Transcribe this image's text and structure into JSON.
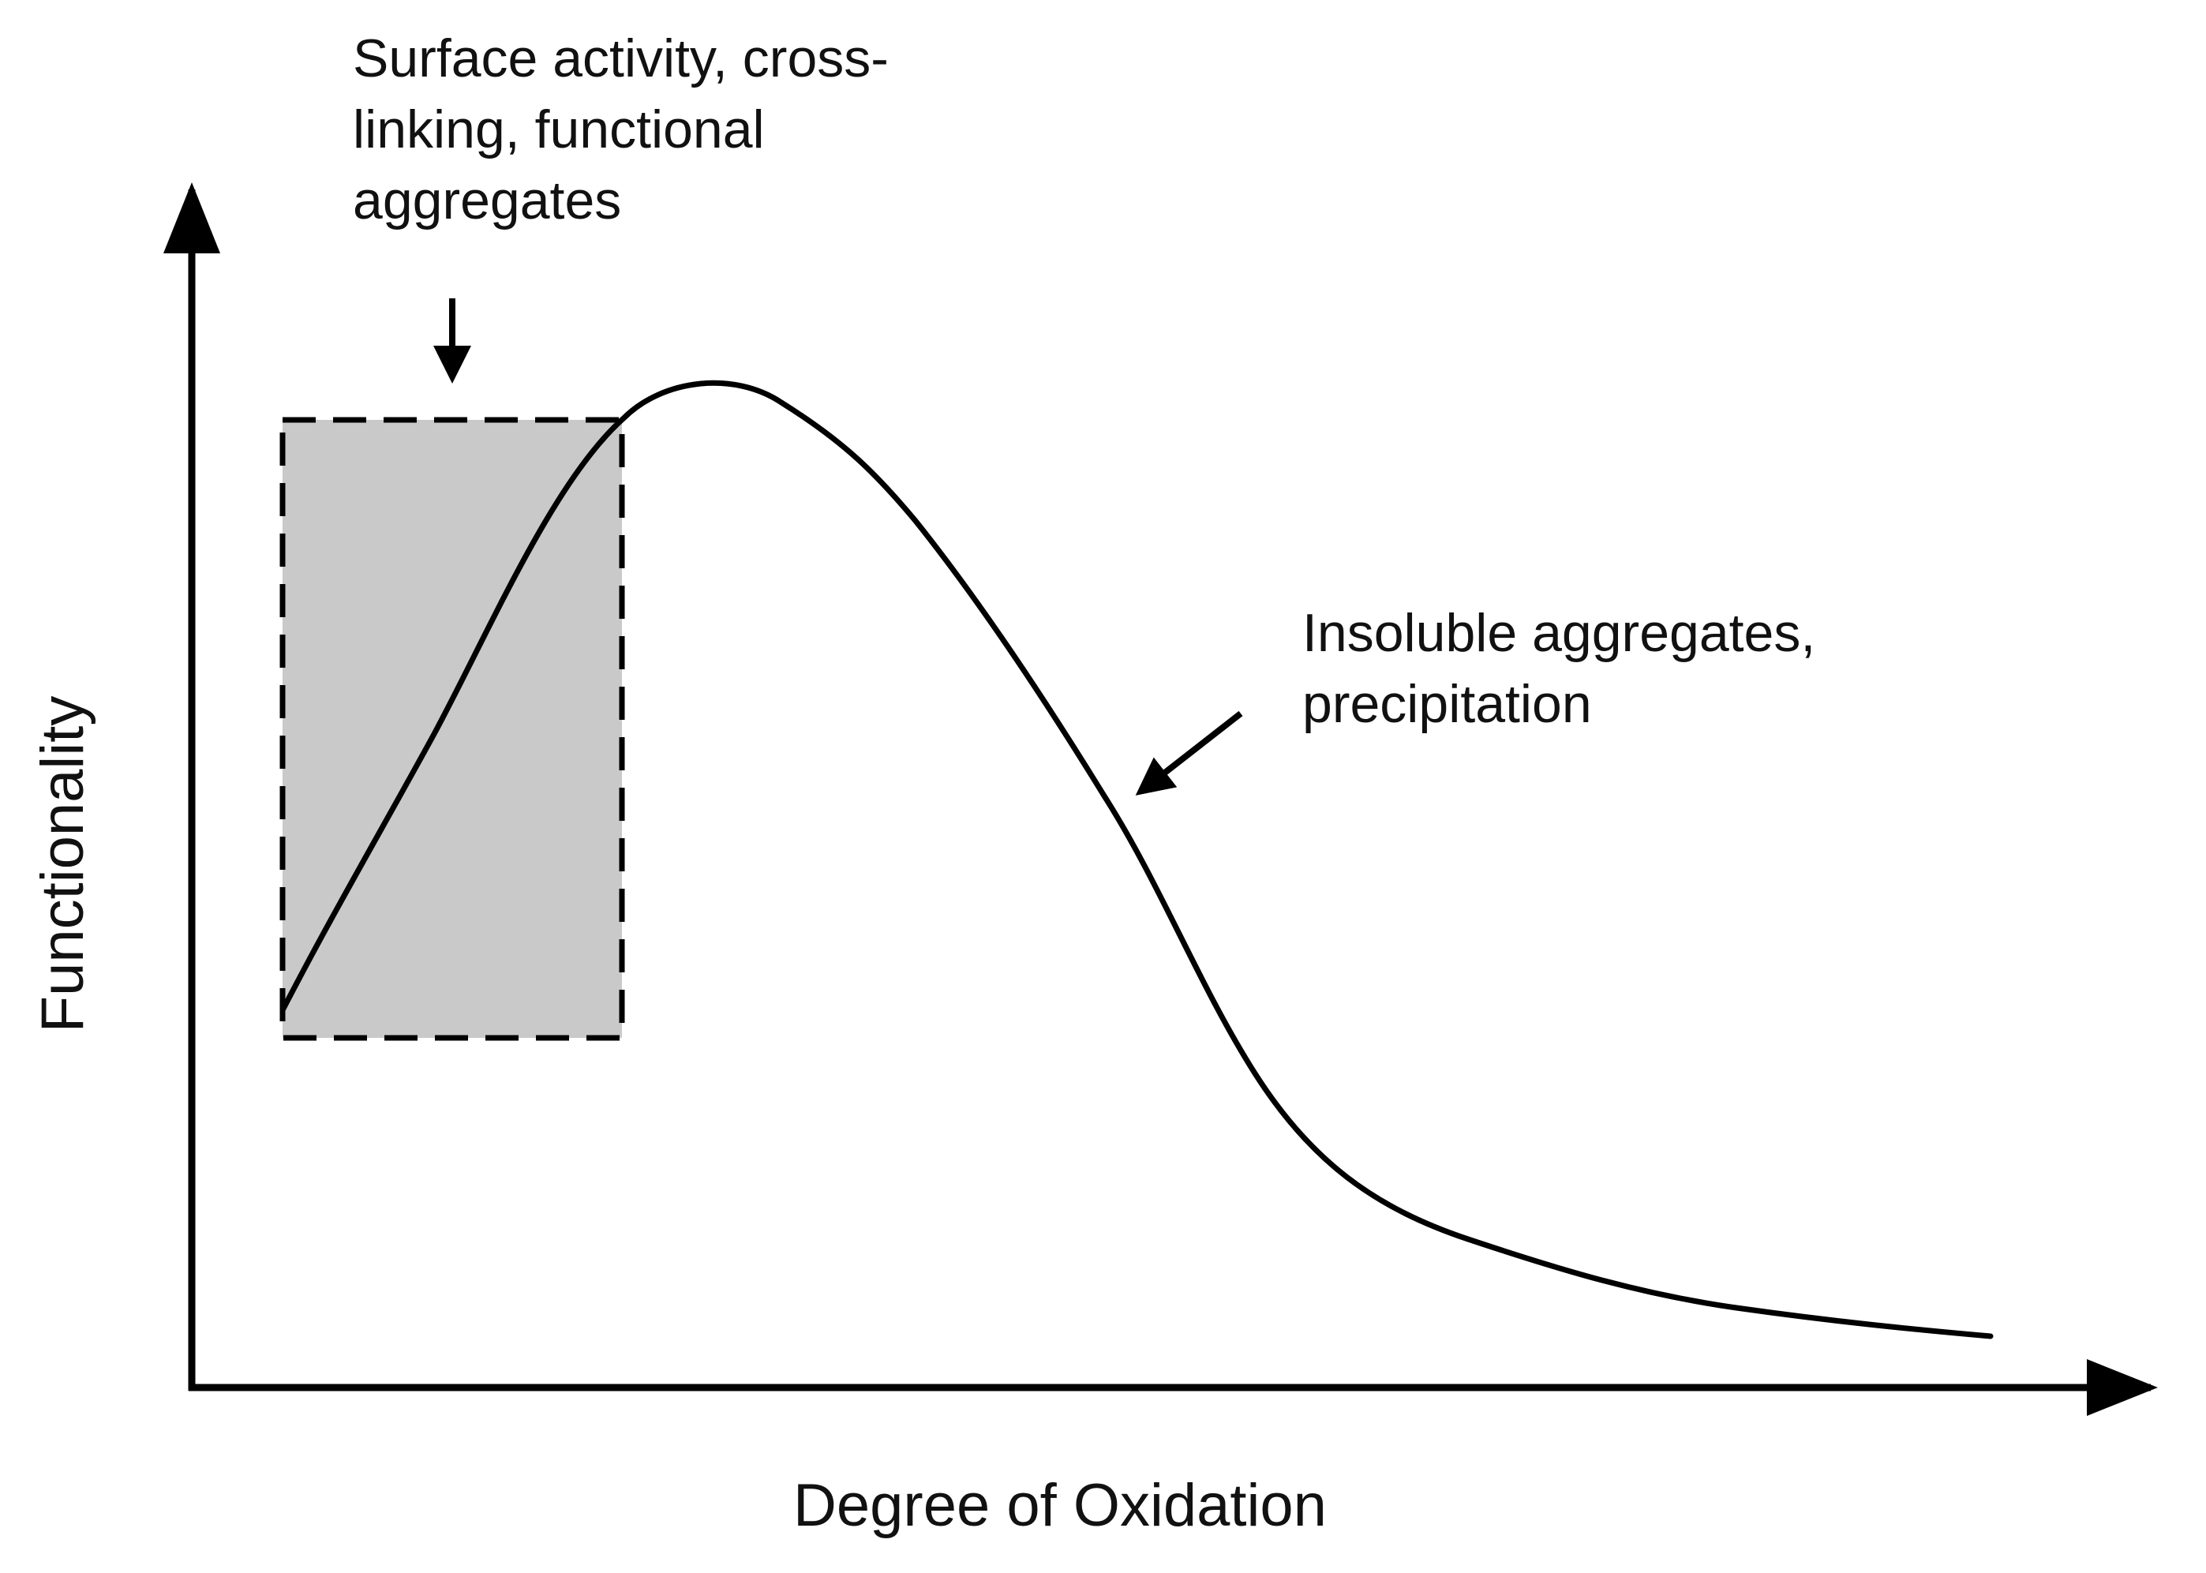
{
  "figure": {
    "x_axis_label": "Degree of Oxidation",
    "y_axis_label": "Functionality",
    "callouts": [
      {
        "id": "surface-activity",
        "lines": [
          "Surface activity, cross-",
          "linking, functional",
          "aggregates"
        ]
      },
      {
        "id": "insoluble-aggregates",
        "lines": [
          "Insoluble aggregates,",
          "precipitation"
        ]
      }
    ],
    "colors": {
      "ink": "#000000",
      "text": "#111111",
      "highlight_fill": "#c9c9c9",
      "background": "#ffffff"
    }
  }
}
